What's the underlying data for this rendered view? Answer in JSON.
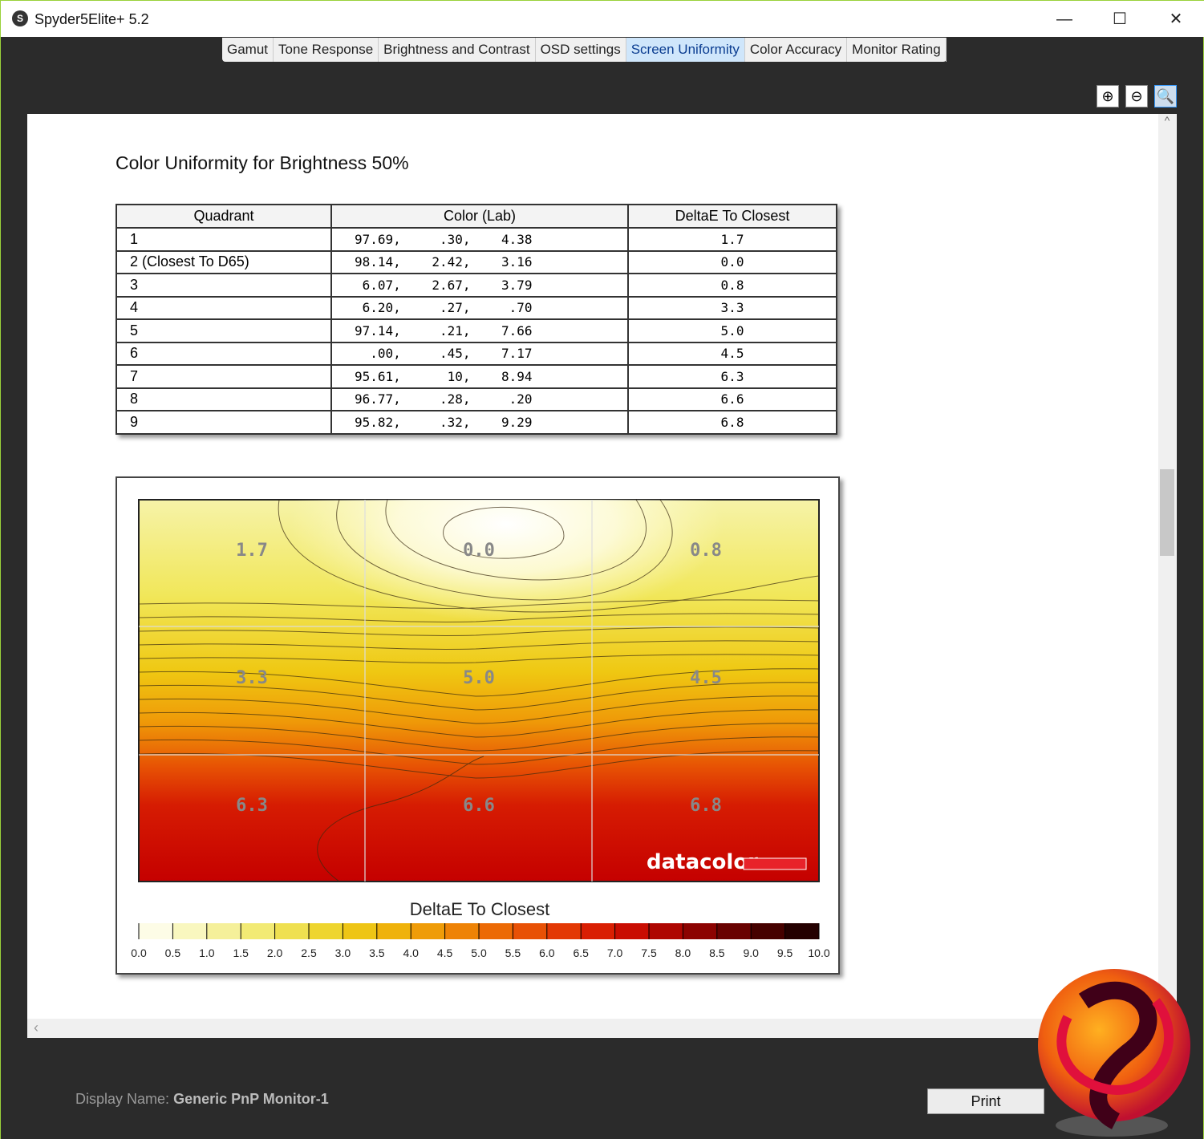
{
  "window": {
    "title": "Spyder5Elite+ 5.2",
    "minimize": "—",
    "maximize": "☐",
    "close": "✕"
  },
  "tabs": [
    {
      "label": "Gamut"
    },
    {
      "label": "Tone Response"
    },
    {
      "label": "Brightness and Contrast"
    },
    {
      "label": "OSD settings"
    },
    {
      "label": "Screen Uniformity",
      "active": true
    },
    {
      "label": "Color Accuracy"
    },
    {
      "label": "Monitor Rating"
    }
  ],
  "zoom": {
    "in": "⊕",
    "out": "⊖",
    "fit": "🔍"
  },
  "report": {
    "heading": "Color Uniformity for Brightness 50%",
    "table": {
      "headers": [
        "Quadrant",
        "Color (Lab)",
        "DeltaE To Closest"
      ],
      "rows": [
        [
          "1",
          "97.69,     .30,    4.38",
          "1.7"
        ],
        [
          "2 (Closest To D65)",
          "98.14,    2.42,    3.16",
          "0.0"
        ],
        [
          "3",
          " 6.07,    2.67,    3.79",
          "0.8"
        ],
        [
          "4",
          " 6.20,     .27,     .70",
          "3.3"
        ],
        [
          "5",
          "97.14,     .21,    7.66",
          "5.0"
        ],
        [
          "6",
          "  .00,     .45,    7.17",
          "4.5"
        ],
        [
          "7",
          "95.61,      10,    8.94",
          "6.3"
        ],
        [
          "8",
          "96.77,     .28,     .20",
          "6.6"
        ],
        [
          "9",
          "95.82,     .32,    9.29",
          "6.8"
        ]
      ]
    },
    "heatmap": {
      "quadrant_values": [
        "1.7",
        "0.0",
        "0.8",
        "3.3",
        "5.0",
        "4.5",
        "6.3",
        "6.6",
        "6.8"
      ],
      "brand": "datacolor",
      "legend_title": "DeltaE To Closest",
      "legend_ticks": [
        "0.0",
        "0.5",
        "1.0",
        "1.5",
        "2.0",
        "2.5",
        "3.0",
        "3.5",
        "4.0",
        "4.5",
        "5.0",
        "5.5",
        "6.0",
        "6.5",
        "7.0",
        "7.5",
        "8.0",
        "8.5",
        "9.0",
        "9.5",
        "10.0"
      ],
      "legend_colors": [
        "#fdfce6",
        "#f9f7bf",
        "#f5f09a",
        "#f2ea74",
        "#efe050",
        "#eed52e",
        "#eec515",
        "#efb20b",
        "#ef9c08",
        "#ee8306",
        "#ec6a05",
        "#e85105",
        "#e33804",
        "#d91f03",
        "#c90d02",
        "#ae0601",
        "#8c0301",
        "#690201",
        "#460100",
        "#240000"
      ]
    }
  },
  "status": {
    "label": "Display Name:",
    "value": "Generic PnP Monitor-1"
  },
  "buttons": {
    "print": "Print"
  }
}
